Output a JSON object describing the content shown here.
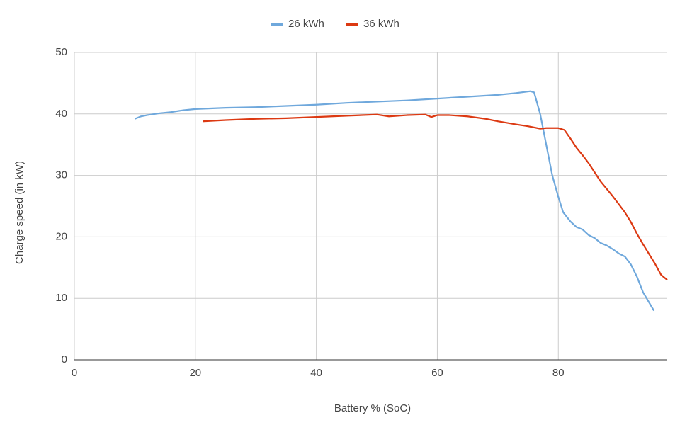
{
  "chart_data": {
    "type": "line",
    "xlabel": "Battery % (SoC)",
    "ylabel": "Charge speed (in kW)",
    "xlim": [
      0,
      98
    ],
    "xticks": [
      0,
      20,
      40,
      60,
      80
    ],
    "ylim": [
      0,
      50
    ],
    "yticks": [
      0,
      10,
      20,
      30,
      40,
      50
    ],
    "grid": true,
    "legend": "top",
    "series": [
      {
        "name": "26 kWh",
        "color": "#6fa8dc",
        "x": [
          10,
          11,
          12,
          14,
          16,
          18,
          20,
          25,
          30,
          35,
          40,
          45,
          50,
          55,
          60,
          65,
          70,
          73,
          75.4,
          76,
          77,
          78,
          79,
          80,
          80.8,
          82,
          83,
          84,
          85,
          86,
          87,
          88,
          89,
          90,
          91,
          92,
          93,
          94,
          95.8
        ],
        "values": [
          39.2,
          39.6,
          39.8,
          40.1,
          40.3,
          40.6,
          40.8,
          41.0,
          41.1,
          41.3,
          41.5,
          41.8,
          42.0,
          42.2,
          42.5,
          42.8,
          43.1,
          43.4,
          43.7,
          43.5,
          40,
          35,
          30,
          26.5,
          24,
          22.5,
          21.6,
          21.2,
          20.3,
          19.8,
          19.0,
          18.6,
          18.0,
          17.3,
          16.8,
          15.5,
          13.5,
          11,
          8
        ]
      },
      {
        "name": "36 kWh",
        "color": "#dc3912",
        "x": [
          21.2,
          25,
          30,
          35,
          40,
          45,
          50,
          52,
          55,
          58,
          59,
          60,
          62,
          65,
          68,
          70,
          73,
          75,
          77,
          78,
          80,
          81,
          82,
          83,
          84,
          85,
          86,
          87,
          88,
          89,
          90,
          91,
          92,
          93,
          94,
          95,
          96,
          97,
          98
        ],
        "values": [
          38.8,
          39.0,
          39.2,
          39.3,
          39.5,
          39.7,
          39.9,
          39.6,
          39.8,
          39.9,
          39.5,
          39.8,
          39.8,
          39.6,
          39.2,
          38.8,
          38.3,
          38.0,
          37.6,
          37.7,
          37.7,
          37.4,
          36,
          34.5,
          33.3,
          32,
          30.5,
          29,
          27.8,
          26.6,
          25.3,
          24,
          22.4,
          20.5,
          18.8,
          17.2,
          15.6,
          13.8,
          13.0
        ]
      }
    ]
  }
}
